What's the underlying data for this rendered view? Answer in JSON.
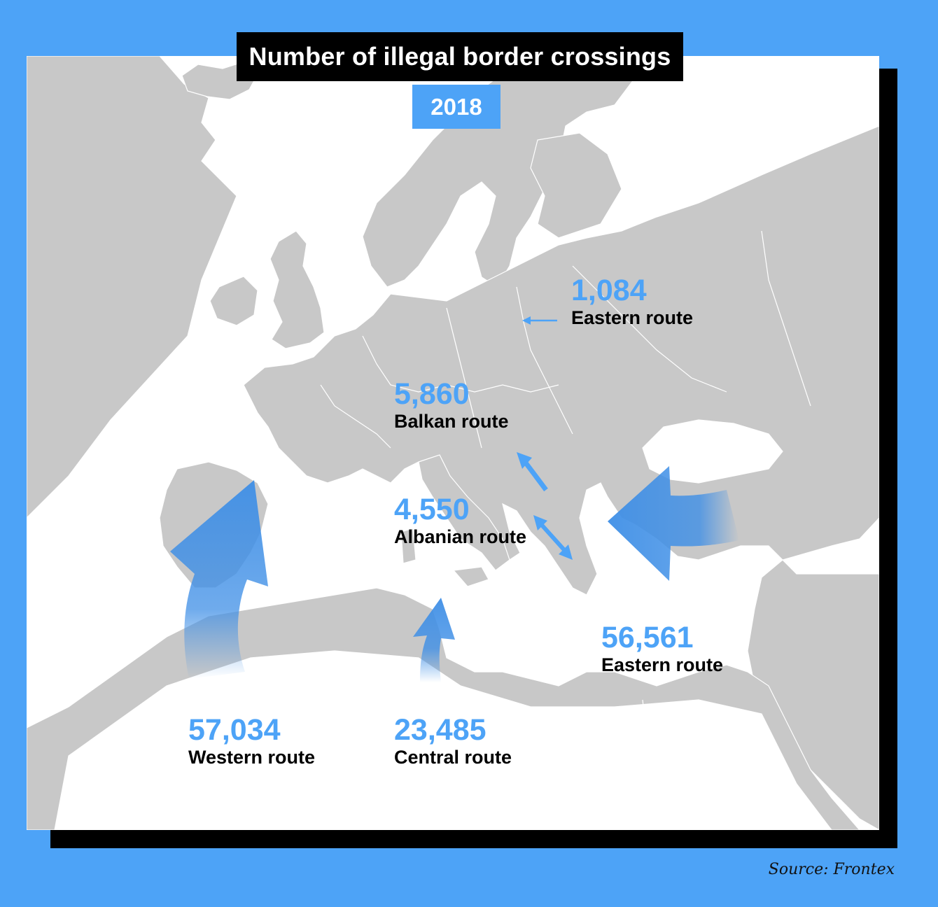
{
  "title": "Number of illegal border crossings",
  "year": "2018",
  "source": "Source: Frontex",
  "colors": {
    "background": "#4da3f7",
    "land": "#c8c8c8",
    "sea": "#ffffff",
    "accent": "#4da3f7",
    "arrow": "#3f8fe6"
  },
  "routes": [
    {
      "value": "1,084",
      "label": "Eastern route"
    },
    {
      "value": "5,860",
      "label": "Balkan route"
    },
    {
      "value": "4,550",
      "label": "Albanian route"
    },
    {
      "value": "56,561",
      "label": "Eastern route"
    },
    {
      "value": "57,034",
      "label": "Western route"
    },
    {
      "value": "23,485",
      "label": "Central route"
    }
  ]
}
